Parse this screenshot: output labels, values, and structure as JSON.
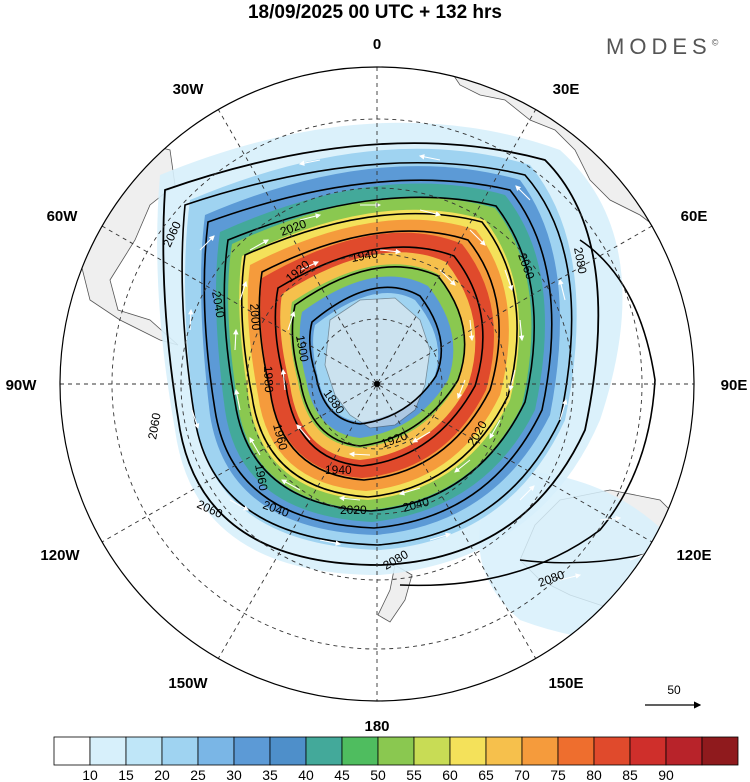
{
  "header": {
    "title": "18/09/2025  00 UTC  + 132 hrs",
    "brand": "MODES",
    "brand_mark": "©"
  },
  "map": {
    "projection": "south-polar-stereographic",
    "longitude_labels": {
      "top": "0",
      "top_right": "30E",
      "right_upper": "60E",
      "right": "90E",
      "right_lower": "120E",
      "bottom_right": "150E",
      "bottom": "180",
      "bottom_left": "150W",
      "left_lower": "120W",
      "left": "90W",
      "left_upper": "60W",
      "top_left": "30W"
    },
    "contour_labels": [
      "2060",
      "2020",
      "1940",
      "2060",
      "2080",
      "2040",
      "1920",
      "2000",
      "1900",
      "1980",
      "1880",
      "1920",
      "2020",
      "1960",
      "1940",
      "2060",
      "2060",
      "2020",
      "2040",
      "2080",
      "2080",
      "1960",
      "2040"
    ],
    "reference_vector": "50"
  },
  "colorbar": {
    "ticks": [
      "10",
      "15",
      "20",
      "25",
      "30",
      "35",
      "40",
      "45",
      "50",
      "55",
      "60",
      "65",
      "70",
      "75",
      "80",
      "85",
      "90"
    ],
    "colors": [
      "#ffffff",
      "#d7f0fb",
      "#bfe6f8",
      "#9fd3f1",
      "#7ab6e6",
      "#5c9ad6",
      "#4e8fca",
      "#43a99a",
      "#4fbd5f",
      "#8ac850",
      "#c8dc55",
      "#f4e15a",
      "#f6c04c",
      "#f59b3c",
      "#ee6e2e",
      "#e04a2c",
      "#cf2f2b",
      "#b8232a",
      "#8f1a1d"
    ]
  }
}
